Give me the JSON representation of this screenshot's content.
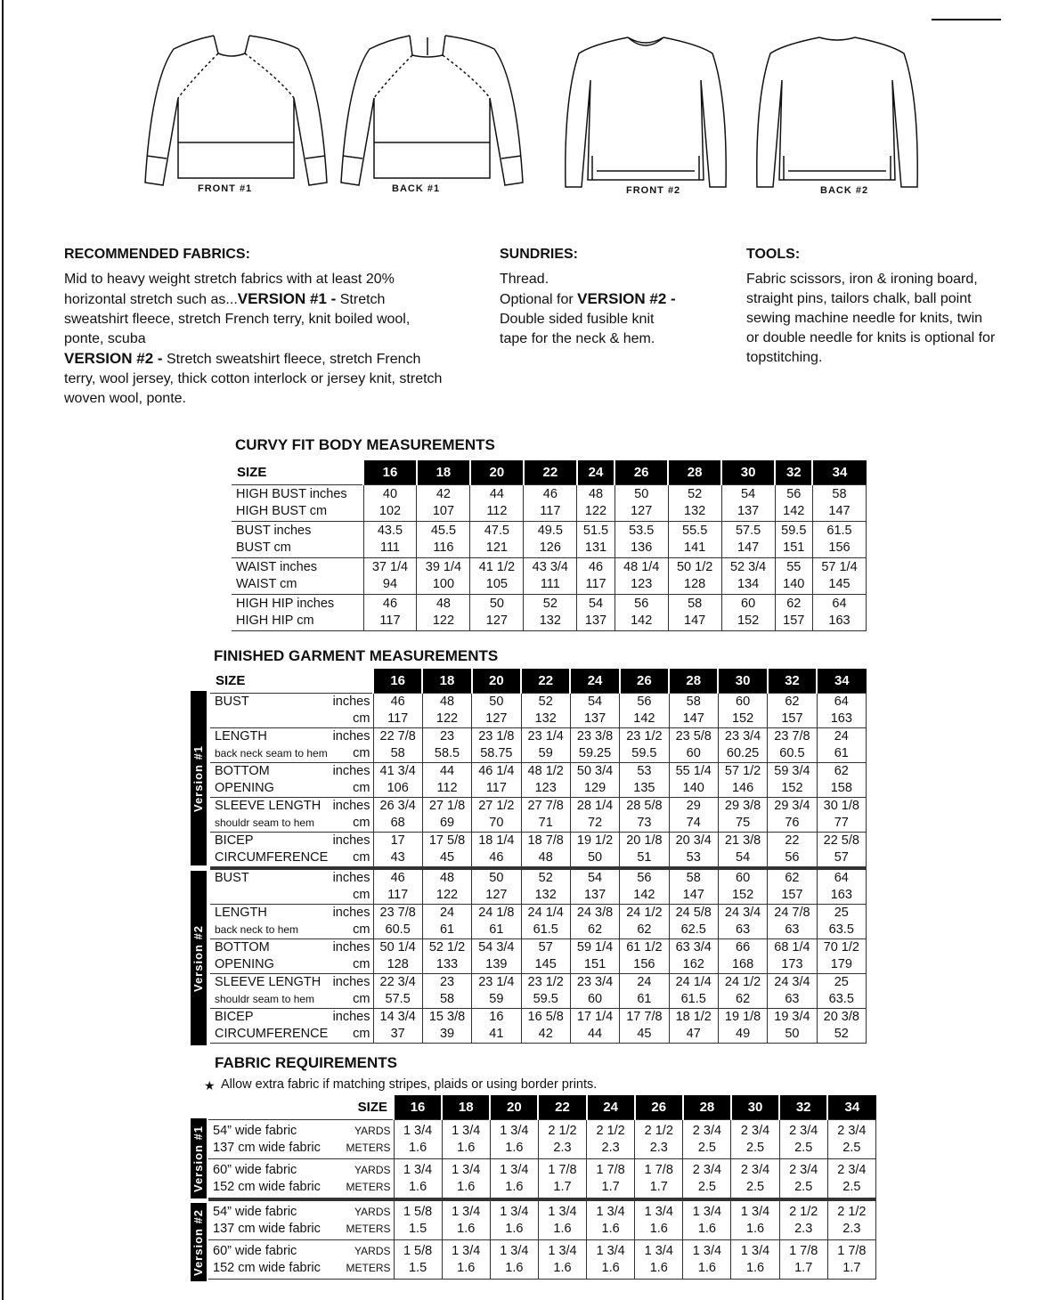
{
  "sketches": [
    {
      "caption": "FRONT #1"
    },
    {
      "caption": "BACK #1"
    },
    {
      "caption": "FRONT #2"
    },
    {
      "caption": "BACK #2"
    }
  ],
  "recommended": {
    "title": "RECOMMENDED FABRICS:",
    "line1": "Mid to heavy weight stretch fabrics with at least 20% horizontal stretch such as...",
    "v1_label": "VERSION #1 -",
    "v1_text": " Stretch sweatshirt fleece, stretch French terry, knit boiled wool, ponte, scuba",
    "v2_label": "VERSION #2 -",
    "v2_text": " Stretch sweatshirt fleece, stretch French terry, wool jersey, thick cotton interlock or jersey knit, stretch woven wool, ponte."
  },
  "sundries": {
    "title": "SUNDRIES:",
    "line1": "Thread.",
    "opt": "Optional for ",
    "v2_label": "VERSION #2 -",
    "text": " Double sided fusible knit tape for the neck & hem."
  },
  "tools": {
    "title": "TOOLS:",
    "text": "Fabric scissors, iron & ironing board, straight pins, tailors chalk, ball point sewing machine needle for knits, twin or double needle for knits is optional for topstitching."
  },
  "sizes": [
    "16",
    "18",
    "20",
    "22",
    "24",
    "26",
    "28",
    "30",
    "32",
    "34"
  ],
  "curvy": {
    "title": "CURVY FIT BODY MEASUREMENTS",
    "size_label": "SIZE",
    "rows": [
      {
        "labels": [
          "HIGH BUST inches",
          "HIGH BUST cm"
        ],
        "values": [
          [
            "40",
            "42",
            "44",
            "46",
            "48",
            "50",
            "52",
            "54",
            "56",
            "58"
          ],
          [
            "102",
            "107",
            "112",
            "117",
            "122",
            "127",
            "132",
            "137",
            "142",
            "147"
          ]
        ]
      },
      {
        "labels": [
          "BUST inches",
          "BUST cm"
        ],
        "values": [
          [
            "43.5",
            "45.5",
            "47.5",
            "49.5",
            "51.5",
            "53.5",
            "55.5",
            "57.5",
            "59.5",
            "61.5"
          ],
          [
            "111",
            "116",
            "121",
            "126",
            "131",
            "136",
            "141",
            "147",
            "151",
            "156"
          ]
        ]
      },
      {
        "labels": [
          "WAIST inches",
          "WAIST cm"
        ],
        "values": [
          [
            "37 1/4",
            "39 1/4",
            "41 1/2",
            "43 3/4",
            "46",
            "48 1/4",
            "50 1/2",
            "52 3/4",
            "55",
            "57 1/4"
          ],
          [
            "94",
            "100",
            "105",
            "111",
            "117",
            "123",
            "128",
            "134",
            "140",
            "145"
          ]
        ]
      },
      {
        "labels": [
          "HIGH HIP inches",
          "HIGH HIP cm"
        ],
        "values": [
          [
            "46",
            "48",
            "50",
            "52",
            "54",
            "56",
            "58",
            "60",
            "62",
            "64"
          ],
          [
            "117",
            "122",
            "127",
            "132",
            "137",
            "142",
            "147",
            "152",
            "157",
            "163"
          ]
        ]
      }
    ]
  },
  "finished": {
    "title": "FINISHED GARMENT MEASUREMENTS",
    "size_label": "SIZE",
    "groups": [
      {
        "version": "Version #1",
        "rows": [
          {
            "labels": [
              "BUST",
              ""
            ],
            "units": [
              "inches",
              "cm"
            ],
            "values": [
              [
                "46",
                "48",
                "50",
                "52",
                "54",
                "56",
                "58",
                "60",
                "62",
                "64"
              ],
              [
                "117",
                "122",
                "127",
                "132",
                "137",
                "142",
                "147",
                "152",
                "157",
                "163"
              ]
            ]
          },
          {
            "labels": [
              "LENGTH",
              "back neck seam to hem"
            ],
            "units": [
              "inches",
              "cm"
            ],
            "values": [
              [
                "22 7/8",
                "23",
                "23 1/8",
                "23 1/4",
                "23 3/8",
                "23 1/2",
                "23 5/8",
                "23 3/4",
                "23 7/8",
                "24"
              ],
              [
                "58",
                "58.5",
                "58.75",
                "59",
                "59.25",
                "59.5",
                "60",
                "60.25",
                "60.5",
                "61"
              ]
            ]
          },
          {
            "labels": [
              "BOTTOM",
              "OPENING"
            ],
            "units": [
              "inches",
              "cm"
            ],
            "values": [
              [
                "41 3/4",
                "44",
                "46 1/4",
                "48 1/2",
                "50 3/4",
                "53",
                "55 1/4",
                "57 1/2",
                "59 3/4",
                "62"
              ],
              [
                "106",
                "112",
                "117",
                "123",
                "129",
                "135",
                "140",
                "146",
                "152",
                "158"
              ]
            ]
          },
          {
            "labels": [
              "SLEEVE LENGTH",
              "shouldr seam to hem"
            ],
            "units": [
              "inches",
              "cm"
            ],
            "values": [
              [
                "26 3/4",
                "27 1/8",
                "27 1/2",
                "27 7/8",
                "28 1/4",
                "28 5/8",
                "29",
                "29 3/8",
                "29 3/4",
                "30 1/8"
              ],
              [
                "68",
                "69",
                "70",
                "71",
                "72",
                "73",
                "74",
                "75",
                "76",
                "77"
              ]
            ]
          },
          {
            "labels": [
              "BICEP",
              "CIRCUMFERENCE"
            ],
            "units": [
              "inches",
              "cm"
            ],
            "values": [
              [
                "17",
                "17 5/8",
                "18 1/4",
                "18 7/8",
                "19 1/2",
                "20 1/8",
                "20 3/4",
                "21 3/8",
                "22",
                "22 5/8"
              ],
              [
                "43",
                "45",
                "46",
                "48",
                "50",
                "51",
                "53",
                "54",
                "56",
                "57"
              ]
            ]
          }
        ]
      },
      {
        "version": "Version #2",
        "rows": [
          {
            "labels": [
              "BUST",
              ""
            ],
            "units": [
              "inches",
              "cm"
            ],
            "values": [
              [
                "46",
                "48",
                "50",
                "52",
                "54",
                "56",
                "58",
                "60",
                "62",
                "64"
              ],
              [
                "117",
                "122",
                "127",
                "132",
                "137",
                "142",
                "147",
                "152",
                "157",
                "163"
              ]
            ]
          },
          {
            "labels": [
              "LENGTH",
              "back neck to hem"
            ],
            "units": [
              "inches",
              "cm"
            ],
            "values": [
              [
                "23 7/8",
                "24",
                "24 1/8",
                "24 1/4",
                "24 3/8",
                "24 1/2",
                "24 5/8",
                "24 3/4",
                "24 7/8",
                "25"
              ],
              [
                "60.5",
                "61",
                "61",
                "61.5",
                "62",
                "62",
                "62.5",
                "63",
                "63",
                "63.5"
              ]
            ]
          },
          {
            "labels": [
              "BOTTOM",
              "OPENING"
            ],
            "units": [
              "inches",
              "cm"
            ],
            "values": [
              [
                "50 1/4",
                "52 1/2",
                "54 3/4",
                "57",
                "59 1/4",
                "61 1/2",
                "63 3/4",
                "66",
                "68 1/4",
                "70 1/2"
              ],
              [
                "128",
                "133",
                "139",
                "145",
                "151",
                "156",
                "162",
                "168",
                "173",
                "179"
              ]
            ]
          },
          {
            "labels": [
              "SLEEVE LENGTH",
              "shouldr seam to hem"
            ],
            "units": [
              "inches",
              "cm"
            ],
            "values": [
              [
                "22 3/4",
                "23",
                "23 1/4",
                "23 1/2",
                "23 3/4",
                "24",
                "24 1/4",
                "24 1/2",
                "24 3/4",
                "25"
              ],
              [
                "57.5",
                "58",
                "59",
                "59.5",
                "60",
                "61",
                "61.5",
                "62",
                "63",
                "63.5"
              ]
            ]
          },
          {
            "labels": [
              "BICEP",
              "CIRCUMFERENCE"
            ],
            "units": [
              "inches",
              "cm"
            ],
            "values": [
              [
                "14 3/4",
                "15 3/8",
                "16",
                "16 5/8",
                "17 1/4",
                "17 7/8",
                "18 1/2",
                "19 1/8",
                "19 3/4",
                "20 3/8"
              ],
              [
                "37",
                "39",
                "41",
                "42",
                "44",
                "45",
                "47",
                "49",
                "50",
                "52"
              ]
            ]
          }
        ]
      }
    ]
  },
  "fabric": {
    "title": "FABRIC REQUIREMENTS",
    "note": "Allow extra fabric if matching stripes, plaids or using border prints.",
    "size_label": "SIZE",
    "groups": [
      {
        "version": "Version #1",
        "rows": [
          {
            "labels": [
              "54” wide fabric",
              "137 cm wide fabric"
            ],
            "units": [
              "YARDS",
              "METERS"
            ],
            "values": [
              [
                "1 3/4",
                "1 3/4",
                "1 3/4",
                "2 1/2",
                "2 1/2",
                "2 1/2",
                "2 3/4",
                "2 3/4",
                "2 3/4",
                "2 3/4"
              ],
              [
                "1.6",
                "1.6",
                "1.6",
                "2.3",
                "2.3",
                "2.3",
                "2.5",
                "2.5",
                "2.5",
                "2.5"
              ]
            ]
          },
          {
            "labels": [
              "60” wide fabric",
              "152 cm wide fabric"
            ],
            "units": [
              "YARDS",
              "METERS"
            ],
            "values": [
              [
                "1 3/4",
                "1 3/4",
                "1 3/4",
                "1 7/8",
                "1 7/8",
                "1 7/8",
                "2 3/4",
                "2 3/4",
                "2 3/4",
                "2 3/4"
              ],
              [
                "1.6",
                "1.6",
                "1.6",
                "1.7",
                "1.7",
                "1.7",
                "2.5",
                "2.5",
                "2.5",
                "2.5"
              ]
            ]
          }
        ]
      },
      {
        "version": "Version #2",
        "rows": [
          {
            "labels": [
              "54” wide fabric",
              "137 cm wide fabric"
            ],
            "units": [
              "YARDS",
              "METERS"
            ],
            "values": [
              [
                "1 5/8",
                "1 3/4",
                "1 3/4",
                "1 3/4",
                "1 3/4",
                "1 3/4",
                "1 3/4",
                "1 3/4",
                "2 1/2",
                "2 1/2"
              ],
              [
                "1.5",
                "1.6",
                "1.6",
                "1.6",
                "1.6",
                "1.6",
                "1.6",
                "1.6",
                "2.3",
                "2.3"
              ]
            ]
          },
          {
            "labels": [
              "60” wide fabric",
              "152 cm wide fabric"
            ],
            "units": [
              "YARDS",
              "METERS"
            ],
            "values": [
              [
                "1 5/8",
                "1 3/4",
                "1 3/4",
                "1 3/4",
                "1 3/4",
                "1 3/4",
                "1 3/4",
                "1 3/4",
                "1 7/8",
                "1 7/8"
              ],
              [
                "1.5",
                "1.6",
                "1.6",
                "1.6",
                "1.6",
                "1.6",
                "1.6",
                "1.6",
                "1.7",
                "1.7"
              ]
            ]
          }
        ]
      }
    ]
  }
}
